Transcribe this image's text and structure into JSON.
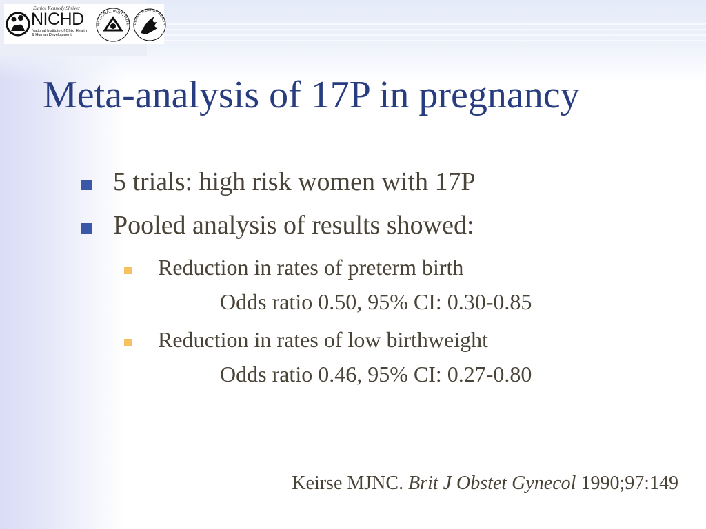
{
  "logo": {
    "tagline": "Eunice Kennedy Shriver",
    "name": "NICHD",
    "line1": "National Institute of Child Health",
    "line2": "& Human Development",
    "nih_text": "NATIONAL INSTITUTES OF HEALTH",
    "hhs_text": "DEPARTMENT OF HEALTH & HUMAN SERVICES",
    "icons": [
      "nichd-family-icon",
      "nih-logo-icon",
      "hhs-eagle-icon"
    ]
  },
  "slide": {
    "title": "Meta-analysis of 17P in pregnancy",
    "bullets": [
      {
        "text": "5 trials: high risk women with 17P",
        "sub": []
      },
      {
        "text": "Pooled analysis of results showed:",
        "sub": [
          {
            "text": "Reduction in rates of preterm birth",
            "detail": "Odds ratio 0.50, 95% CI: 0.30-0.85"
          },
          {
            "text": "Reduction in rates of low birthweight",
            "detail": "Odds ratio 0.46, 95% CI: 0.27-0.80"
          }
        ]
      }
    ],
    "citation": {
      "author": "Keirse MJNC.",
      "journal": "Brit J Obstet Gynecol",
      "ref": "1990;97:149"
    }
  },
  "colors": {
    "title": "#283c80",
    "bullet_level1": "#3a57a8",
    "bullet_level2": "#f6c261",
    "body_text": "#4a4438"
  }
}
